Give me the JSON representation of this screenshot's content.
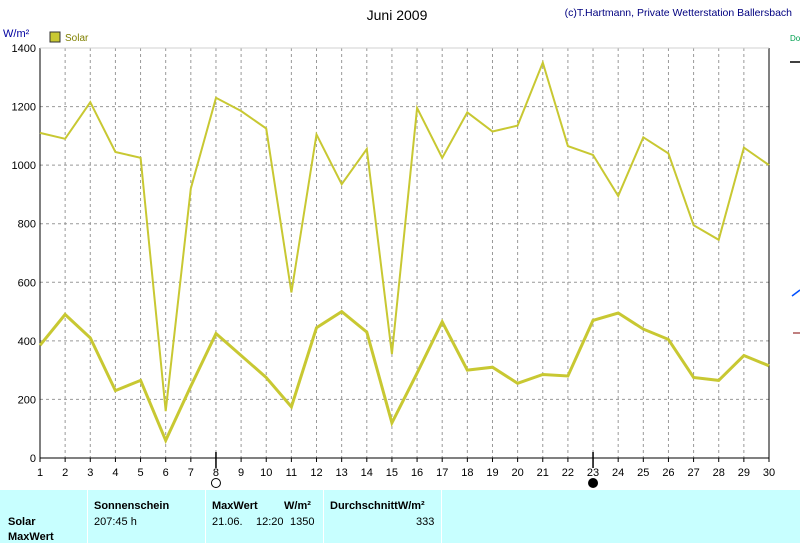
{
  "header": {
    "title": "Juni 2009",
    "copyright": "(c)T.Hartmann, Private Wetterstation Ballersbach",
    "unit": "W/m²",
    "legend_label": "Solar"
  },
  "colors": {
    "series": "#c8c832",
    "legend_box": "#c8c832",
    "footer_bg": "#c8ffff",
    "grid": "#999999"
  },
  "chart_data": {
    "type": "line",
    "title": "Juni 2009",
    "ylabel": "W/m²",
    "xlabel": "",
    "ylim": [
      0,
      1400
    ],
    "xlim": [
      1,
      30
    ],
    "yticks": [
      0,
      200,
      400,
      600,
      800,
      1000,
      1200,
      1400
    ],
    "x": [
      1,
      2,
      3,
      4,
      5,
      6,
      7,
      8,
      9,
      10,
      11,
      12,
      13,
      14,
      15,
      16,
      17,
      18,
      19,
      20,
      21,
      22,
      23,
      24,
      25,
      26,
      27,
      28,
      29,
      30
    ],
    "grid": true,
    "legend": "top-left",
    "series": [
      {
        "name": "Solar",
        "role": "max",
        "values": [
          1110,
          1090,
          1215,
          1045,
          1025,
          160,
          920,
          1230,
          1185,
          1125,
          565,
          1105,
          935,
          1055,
          355,
          1195,
          1025,
          1180,
          1115,
          1135,
          1350,
          1065,
          1035,
          895,
          1095,
          1040,
          795,
          745,
          1060,
          1000
        ]
      },
      {
        "name": "",
        "role": "mean",
        "values": [
          385,
          490,
          410,
          230,
          265,
          60,
          245,
          425,
          350,
          275,
          175,
          445,
          500,
          430,
          120,
          290,
          465,
          300,
          310,
          255,
          285,
          280,
          470,
          495,
          440,
          405,
          275,
          265,
          350,
          315
        ]
      }
    ],
    "markers": [
      {
        "x": 8,
        "symbol": "open-circle"
      },
      {
        "x": 23,
        "symbol": "filled-circle"
      }
    ]
  },
  "footer": {
    "row_labels": {
      "solar": "Solar",
      "maxwert": "MaxWert"
    },
    "sonnenschein": {
      "header": "Sonnenschein",
      "value": "207:45 h"
    },
    "maxwert": {
      "header": "MaxWert",
      "unit_header": "W/m²",
      "date": "21.06.",
      "time": "12:20",
      "value": "1350"
    },
    "durchschnitt": {
      "header": "DurchschnittW/m²",
      "value": "333"
    }
  }
}
